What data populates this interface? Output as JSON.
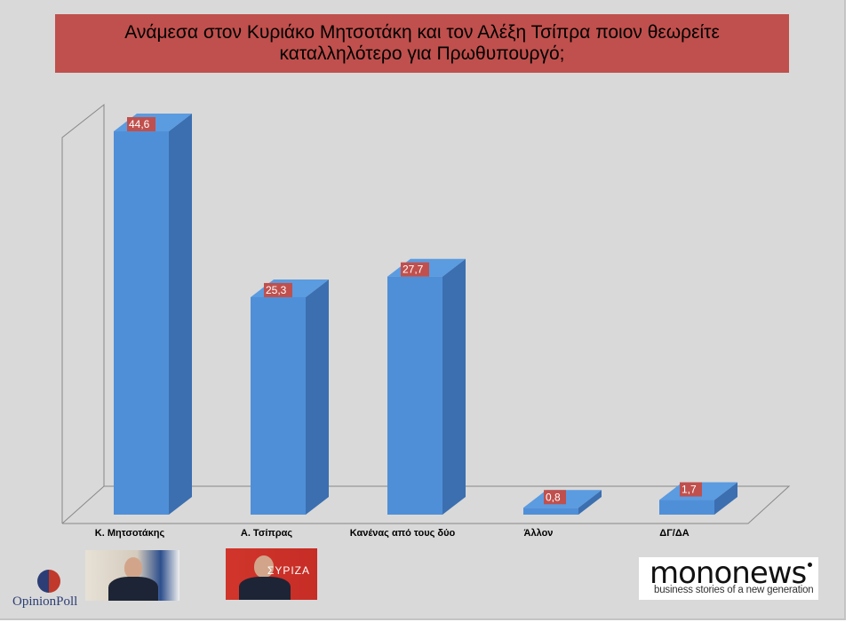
{
  "title": {
    "line1": "Ανάμεσα στον Κυριάκο Μητσοτάκη και τον Αλέξη Τσίπρα ποιον θεωρείτε",
    "line2": "καταλληλότερο για Πρωθυπουργό;"
  },
  "chart_data": {
    "type": "bar",
    "title": "Ανάμεσα στον Κυριάκο Μητσοτάκη και τον Αλέξη Τσίπρα ποιον θεωρείτε καταλληλότερο για Πρωθυπουργό;",
    "categories": [
      "Κ. Μητσοτάκης",
      "Α. Τσίπρας",
      "Κανένας από τους δύο",
      "Άλλον",
      "ΔΓ/ΔΑ"
    ],
    "values": [
      44.6,
      25.3,
      27.7,
      0.8,
      1.7
    ],
    "value_labels": [
      "44,6",
      "25,3",
      "27,7",
      "0,8",
      "1,7"
    ],
    "xlabel": "",
    "ylabel": "",
    "ylim": [
      0,
      44.6
    ],
    "grid": false,
    "legend": "none",
    "style": "3d-column",
    "colors": {
      "bar_front": "#4f8fd8",
      "bar_side": "#3b6fb0",
      "bar_top": "#5b9be0",
      "label_bg": "#c0504d",
      "title_bg": "#c0504d"
    }
  },
  "logos": {
    "opinionpoll": "OpinionPoll",
    "syriza": "ΣΥΡΙΖΑ",
    "mononews_brand": "mononews",
    "mononews_tagline": "business stories of a new generation"
  }
}
